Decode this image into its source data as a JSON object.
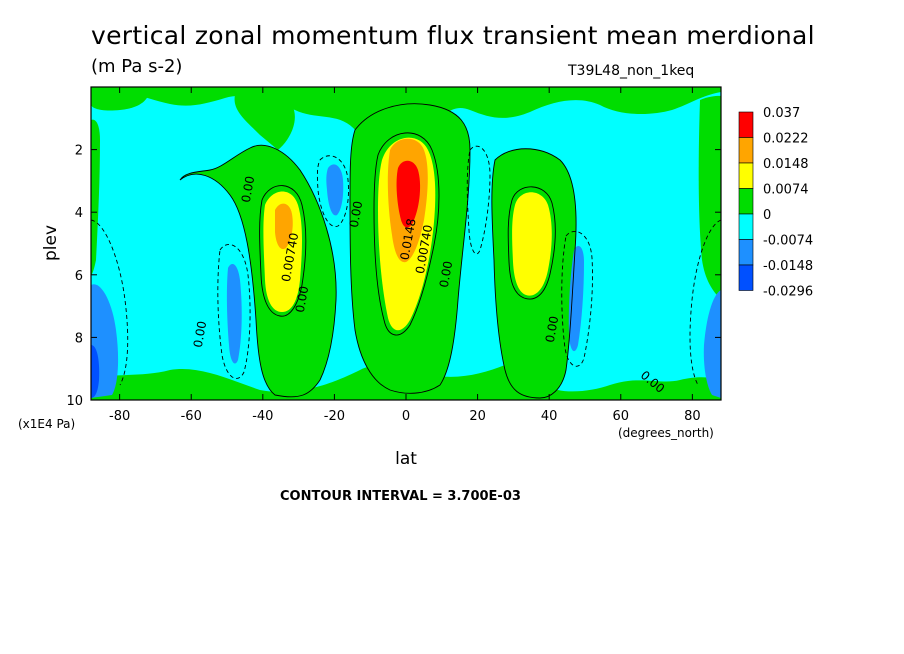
{
  "chart_data": {
    "type": "contour",
    "title": "vertical zonal momentum flux transient mean merdional",
    "units": "(m Pa s-2)",
    "dataset": "T39L48_non_1keq",
    "xlabel": "lat",
    "xunits": "(degrees_north)",
    "ylabel": "plev",
    "yunits": "(x1E4 Pa)",
    "footer": "CONTOUR INTERVAL = 3.700E-03",
    "xlim": [
      -88,
      88
    ],
    "ylim": [
      10,
      0
    ],
    "xticks": [
      "-80",
      "-60",
      "-40",
      "-20",
      "0",
      "20",
      "40",
      "60",
      "80"
    ],
    "yticks": [
      "2",
      "4",
      "6",
      "8",
      "10"
    ],
    "colorbar": {
      "labels": [
        "0.037",
        "0.0222",
        "0.0148",
        "0.0074",
        "0",
        "-0.0074",
        "-0.0148",
        "-0.0296"
      ],
      "colors": [
        "#ff0000",
        "#ffa500",
        "#ffff00",
        "#00dd00",
        "#00ffff",
        "#1e90ff",
        "#0050ff"
      ]
    },
    "contour_labels": [
      "0.00",
      "0.00740",
      "0.00",
      "0.00",
      "0.0148",
      "0.00740",
      "0.00",
      "0.00",
      "0.00",
      "0.00"
    ],
    "features": [
      {
        "lat": 0,
        "plev": 3.3,
        "value": 0.03,
        "sign": "positive"
      },
      {
        "lat": -36,
        "plev": 4.8,
        "value": 0.0148,
        "sign": "positive"
      },
      {
        "lat": 36,
        "plev": 4.8,
        "value": 0.0148,
        "sign": "positive"
      },
      {
        "lat": -22,
        "plev": 3.5,
        "value": -0.0148,
        "sign": "negative"
      },
      {
        "lat": 24,
        "plev": 3.5,
        "value": -0.0074,
        "sign": "negative"
      },
      {
        "lat": -50,
        "plev": 7.5,
        "value": -0.0148,
        "sign": "negative"
      },
      {
        "lat": 48,
        "plev": 7.5,
        "value": -0.0148,
        "sign": "negative"
      },
      {
        "lat": -86,
        "plev": 8.5,
        "value": -0.0296,
        "sign": "negative"
      },
      {
        "lat": 86,
        "plev": 8.5,
        "value": -0.0148,
        "sign": "negative"
      }
    ]
  }
}
